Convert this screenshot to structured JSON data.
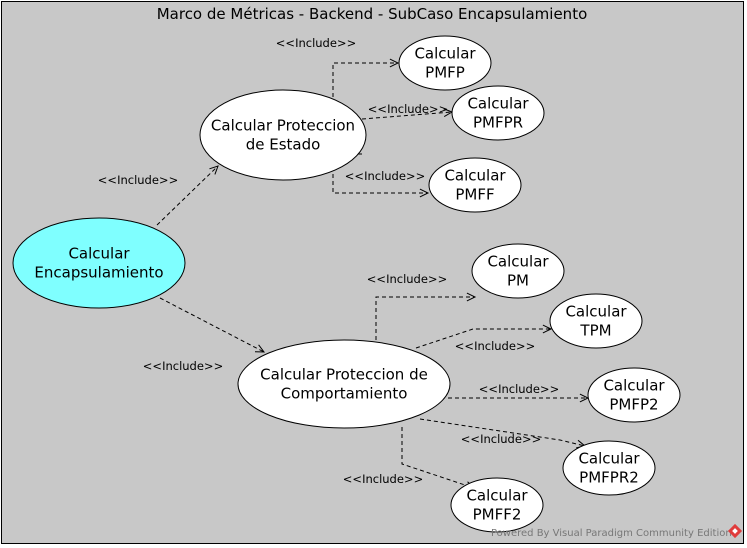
{
  "frame": {
    "title": "Marco de Métricas - Backend - SubCaso Encapsulamiento",
    "background": "#c8c8c8"
  },
  "colors": {
    "root_fill": "#7fffff",
    "node_fill": "#ffffff",
    "stroke": "#000000"
  },
  "use_cases": {
    "calc_encapsulamiento": [
      "Calcular",
      "Encapsulamiento"
    ],
    "calc_proteccion_estado": [
      "Calcular Proteccion",
      "de Estado"
    ],
    "calc_proteccion_comportamiento": [
      "Calcular Proteccion de",
      "Comportamiento"
    ],
    "calc_pmfp": [
      "Calcular",
      "PMFP"
    ],
    "calc_pmfpr": [
      "Calcular",
      "PMFPR"
    ],
    "calc_pmff": [
      "Calcular",
      "PMFF"
    ],
    "calc_pm": [
      "Calcular",
      "PM"
    ],
    "calc_tpm": [
      "Calcular",
      "TPM"
    ],
    "calc_pmfp2": [
      "Calcular",
      "PMFP2"
    ],
    "calc_pmfpr2": [
      "Calcular",
      "PMFPR2"
    ],
    "calc_pmff2": [
      "Calcular",
      "PMFF2"
    ]
  },
  "relations": [
    {
      "from": "calc_encapsulamiento",
      "to": "calc_proteccion_estado",
      "label": "<<Include>>"
    },
    {
      "from": "calc_encapsulamiento",
      "to": "calc_proteccion_comportamiento",
      "label": "<<Include>>"
    },
    {
      "from": "calc_proteccion_estado",
      "to": "calc_pmfp",
      "label": "<<Include>>"
    },
    {
      "from": "calc_proteccion_estado",
      "to": "calc_pmfpr",
      "label": "<<Include>>"
    },
    {
      "from": "calc_proteccion_estado",
      "to": "calc_pmff",
      "label": "<<Include>>"
    },
    {
      "from": "calc_proteccion_comportamiento",
      "to": "calc_pm",
      "label": "<<Include>>"
    },
    {
      "from": "calc_proteccion_comportamiento",
      "to": "calc_tpm",
      "label": "<<Include>>"
    },
    {
      "from": "calc_proteccion_comportamiento",
      "to": "calc_pmfp2",
      "label": "<<Include>>"
    },
    {
      "from": "calc_proteccion_comportamiento",
      "to": "calc_pmfpr2",
      "label": "<<Include>>"
    },
    {
      "from": "calc_proteccion_comportamiento",
      "to": "calc_pmff2",
      "label": "<<Include>>"
    }
  ],
  "watermark": "Powered By Visual Paradigm Community Edition"
}
